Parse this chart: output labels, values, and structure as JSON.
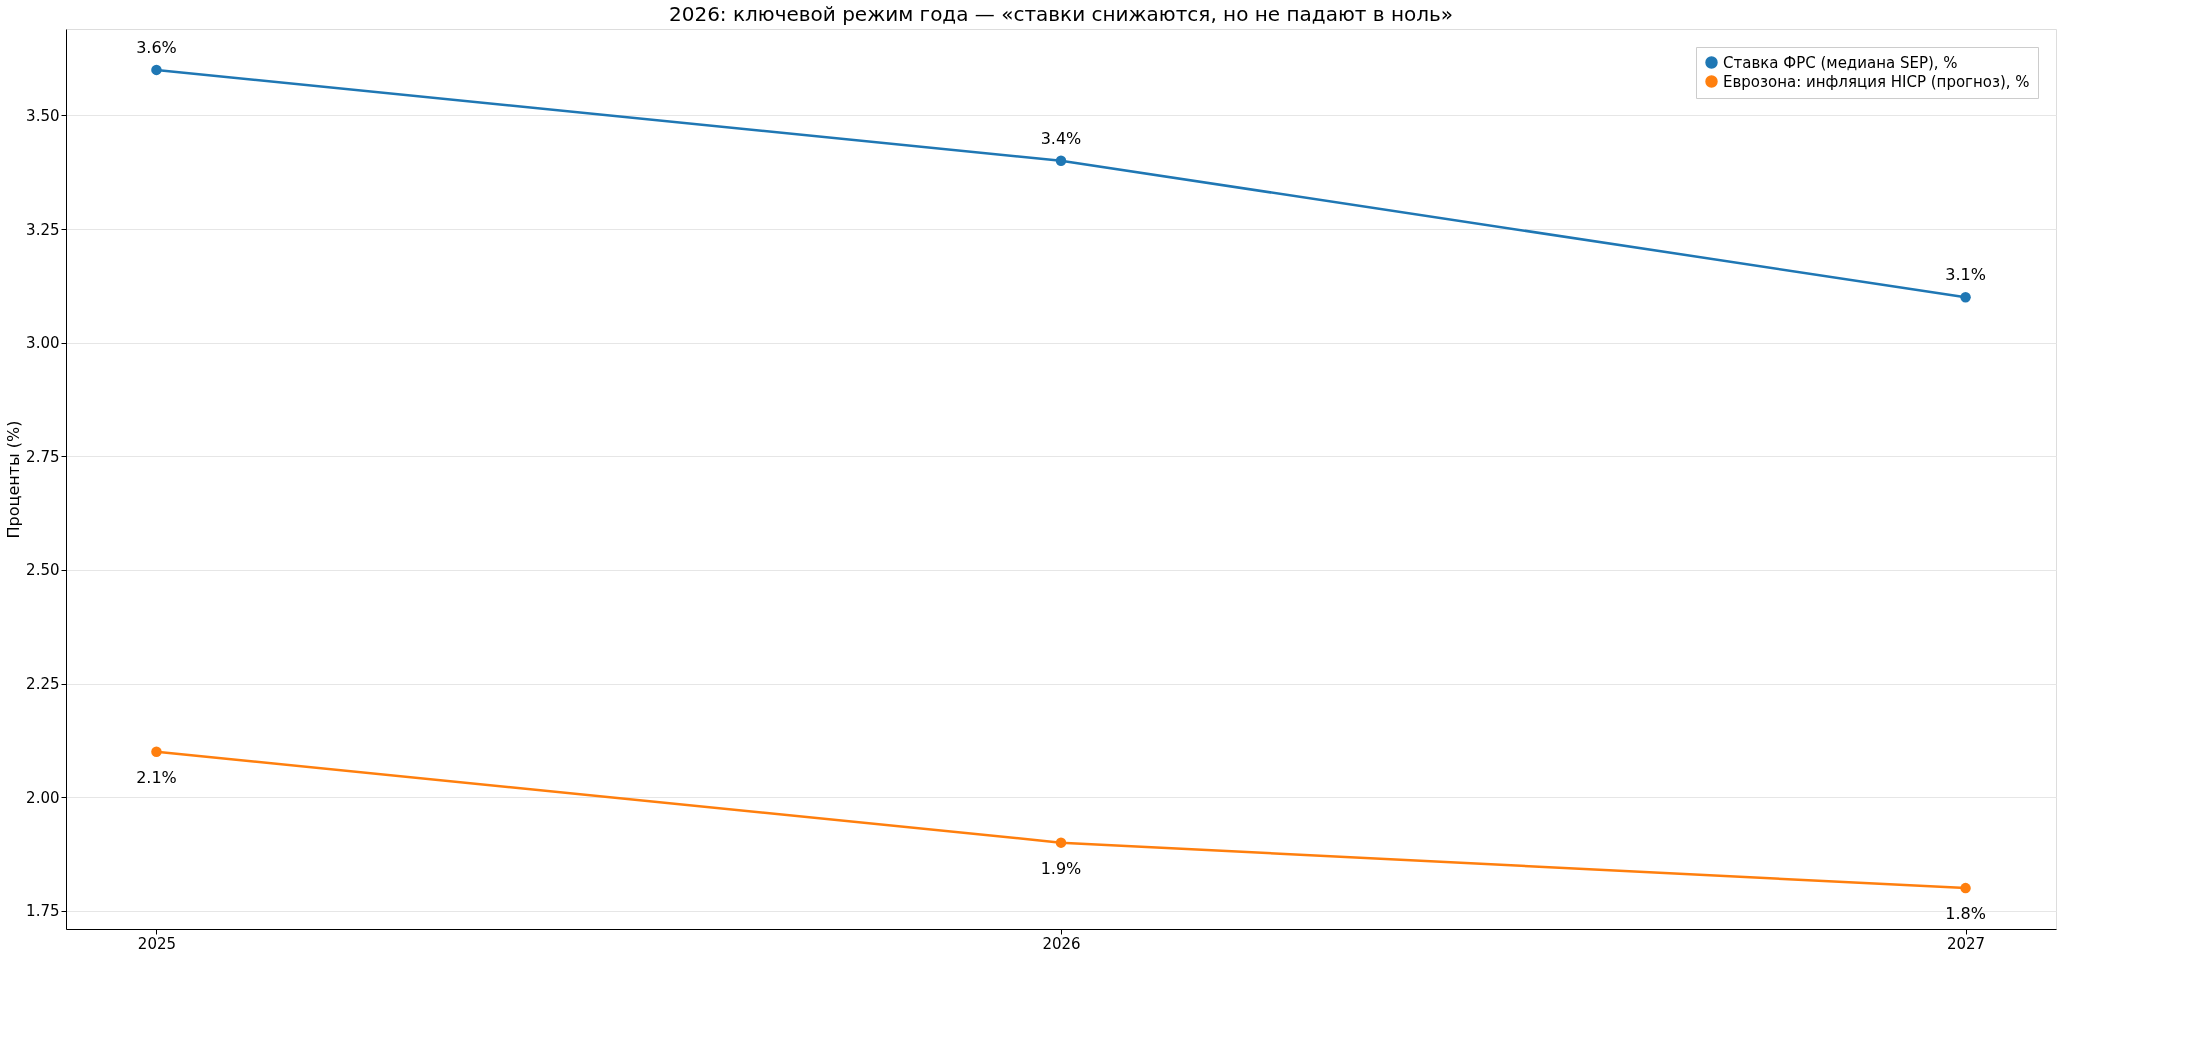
{
  "chart_data": {
    "type": "line",
    "title": "2026: ключевой режим года — «ставки снижаются, но не падают в ноль»",
    "ylabel": "Проценты (%)",
    "categories": [
      "2025",
      "2026",
      "2027"
    ],
    "series": [
      {
        "name": "Ставка ФРС (медиана SEP), %",
        "color": "#1f77b4",
        "values": [
          3.6,
          3.4,
          3.1
        ],
        "value_labels": [
          "3.6%",
          "3.4%",
          "3.1%"
        ]
      },
      {
        "name": "Еврозона: инфляция HICP (прогноз), %",
        "color": "#ff7f0e",
        "values": [
          2.1,
          1.9,
          1.8
        ],
        "value_labels": [
          "2.1%",
          "1.9%",
          "1.8%"
        ]
      }
    ],
    "ylim": [
      1.71,
      3.69
    ],
    "yticks": [
      1.75,
      {
        "value": 2.0,
        "label": "2.00"
      },
      2.25,
      {
        "value": 2.5,
        "label": "2.50"
      },
      2.75,
      {
        "value": 3.0,
        "label": "3.00"
      },
      3.25,
      {
        "value": 3.5,
        "label": "3.50"
      }
    ],
    "grid": "y",
    "legend": "top right",
    "marker": "circle",
    "line_style": "solid"
  }
}
